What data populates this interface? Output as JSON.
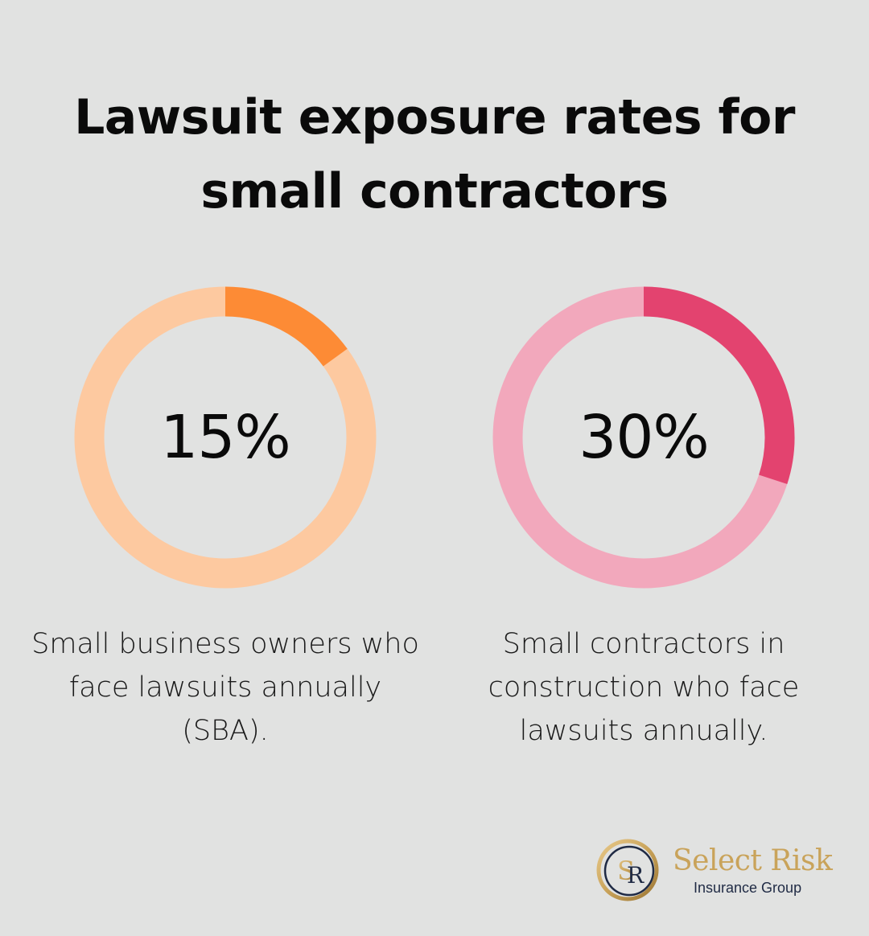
{
  "title": "Lawsuit exposure rates for small contractors",
  "chart_data": [
    {
      "type": "donut",
      "value": 15,
      "label": "15%",
      "caption": "Small business owners who face lawsuits annually (SBA).",
      "colors": {
        "fill": "#fd8b35",
        "track": "#fdc9a0"
      }
    },
    {
      "type": "donut",
      "value": 30,
      "label": "30%",
      "caption": "Small contractors in construction who face lawsuits annually.",
      "colors": {
        "fill": "#e3436f",
        "track": "#f2a8bc"
      }
    }
  ],
  "logo": {
    "monogram": "SR",
    "name": "Select Risk",
    "subtitle": "Insurance Group",
    "colors": {
      "gold": "#c9a35a",
      "navy": "#1f2a44"
    }
  }
}
